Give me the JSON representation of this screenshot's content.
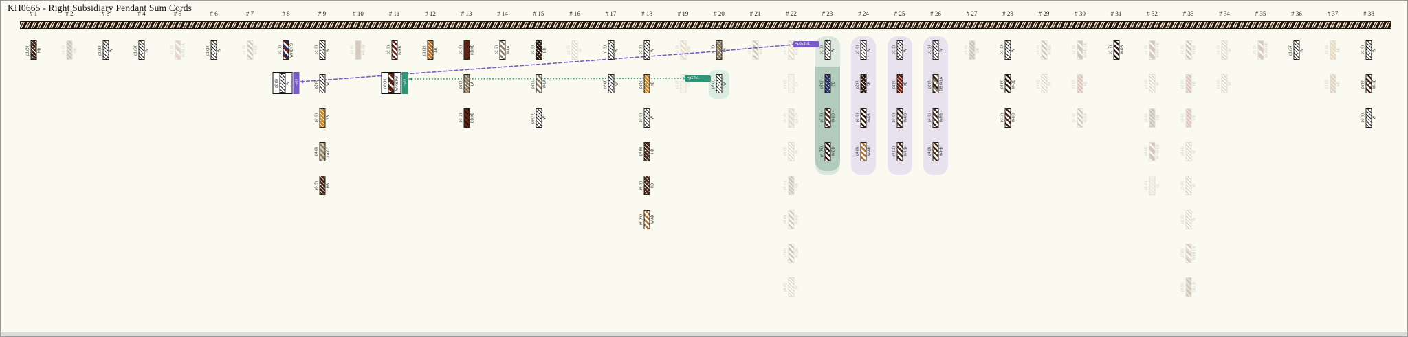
{
  "title": "KH0665 - Right Subsidiary Pendant Sum Cords",
  "colors": {
    "background": "#fbfaf0",
    "purple": "#7a5bc7",
    "teal": "#2f9579",
    "green_band_outer": "#dce8de",
    "green_band_inner": "#b2cbbc",
    "lavender_band": "#e7e2ee",
    "capsule_green": "#daece0"
  },
  "links": [
    {
      "name": "purple-sum-link",
      "color_key": "purple",
      "style": "dashed",
      "source": {
        "col": 8,
        "pendant": "p2",
        "badge": "→p18"
      },
      "via": {
        "col": 20,
        "pendant": "p1"
      },
      "dest": {
        "col": 23,
        "pendant": "p1",
        "badge": "=p9s1p1"
      }
    },
    {
      "name": "teal-sum-link",
      "color_key": "teal",
      "style": "dotted",
      "source": {
        "col": 11,
        "pendant": "p2",
        "badge": "→p18"
      },
      "dest": {
        "col": 20,
        "pendant": "p2",
        "badge": "=p17s1"
      }
    }
  ],
  "columns": [
    {
      "n": 1,
      "label": "# 1",
      "band": null,
      "pendants": [
        {
          "id": "p1",
          "value": 28,
          "code": "HB"
        }
      ]
    },
    {
      "n": 2,
      "label": "# 2",
      "band": null,
      "pendants": [
        {
          "id": "p1",
          "value": 0,
          "code": "DB",
          "faded": true
        }
      ]
    },
    {
      "n": 3,
      "label": "# 3",
      "band": null,
      "pendants": [
        {
          "id": "p1",
          "value": 18,
          "code": "W"
        }
      ]
    },
    {
      "n": 4,
      "label": "# 4",
      "band": null,
      "pendants": [
        {
          "id": "p1",
          "value": 58,
          "code": "W"
        }
      ]
    },
    {
      "n": 5,
      "label": "# 5",
      "band": null,
      "pendants": [
        {
          "id": "p1",
          "value": 0,
          "code": "W-RL:LA",
          "faded": true
        }
      ]
    },
    {
      "n": 6,
      "label": "# 6",
      "band": null,
      "pendants": [
        {
          "id": "p1",
          "value": 18,
          "code": "W"
        }
      ]
    },
    {
      "n": 7,
      "label": "# 7",
      "band": null,
      "pendants": [
        {
          "id": "p1",
          "value": 0,
          "code": "W-DB",
          "faded": true
        }
      ]
    },
    {
      "n": 8,
      "label": "# 8",
      "band": null,
      "pendants": [
        {
          "id": "p1",
          "value": 1,
          "code": "W:KB:PB"
        },
        {
          "id": "p2",
          "value": 1,
          "code": "W",
          "boxed": true,
          "badge": "→p18",
          "badge_color": "purple"
        }
      ]
    },
    {
      "n": 9,
      "label": "# 9",
      "band": null,
      "pendants": [
        {
          "id": "p1",
          "value": 0,
          "code": "W"
        },
        {
          "id": "p2",
          "value": 0,
          "code": "W"
        },
        {
          "id": "p3",
          "value": 0,
          "code": "YB"
        },
        {
          "id": "p4",
          "value": 0,
          "code": "LA-CY"
        },
        {
          "id": "p5",
          "value": 9,
          "code": "HB"
        }
      ]
    },
    {
      "n": 10,
      "label": "# 10",
      "band": null,
      "pendants": [
        {
          "id": "p1",
          "value": 0,
          "code": "HB-KB",
          "faded": true
        }
      ]
    },
    {
      "n": 11,
      "label": "# 11",
      "band": null,
      "pendants": [
        {
          "id": "p1",
          "value": 0,
          "code": "W-KB"
        },
        {
          "id": "p2",
          "value": 16,
          "code": "W:KB:HB",
          "boxed": true,
          "badge": "→p18",
          "badge_color": "teal"
        }
      ]
    },
    {
      "n": 12,
      "label": "# 12",
      "band": null,
      "pendants": [
        {
          "id": "p1",
          "value": 16,
          "code": "AB"
        }
      ]
    },
    {
      "n": 13,
      "label": "# 13",
      "band": null,
      "pendants": [
        {
          "id": "p1",
          "value": 0,
          "code": "HB:KB"
        },
        {
          "id": "p2",
          "value": 2,
          "code": "LA"
        },
        {
          "id": "p3",
          "value": 2,
          "code": "DB:KB"
        }
      ]
    },
    {
      "n": 14,
      "label": "# 14",
      "band": null,
      "pendants": [
        {
          "id": "p1",
          "value": 2,
          "code": "W-LA"
        }
      ]
    },
    {
      "n": 15,
      "label": "# 15",
      "band": null,
      "pendants": [
        {
          "id": "p1",
          "value": 0,
          "code": "DB"
        },
        {
          "id": "p2",
          "value": 1,
          "code": "W-LA"
        },
        {
          "id": "p3",
          "value": 74,
          "code": "W"
        }
      ]
    },
    {
      "n": 16,
      "label": "# 16",
      "band": null,
      "pendants": [
        {
          "id": "p1",
          "value": 0,
          "code": "W",
          "faded": true
        }
      ]
    },
    {
      "n": 17,
      "label": "# 17",
      "band": null,
      "pendants": [
        {
          "id": "p1",
          "value": 9,
          "code": "W"
        },
        {
          "id": "p2",
          "value": 8,
          "code": "W"
        }
      ]
    },
    {
      "n": 18,
      "label": "# 18",
      "band": null,
      "pendants": [
        {
          "id": "p1",
          "value": 9,
          "code": "W"
        },
        {
          "id": "p2",
          "value": 6,
          "code": "YB"
        },
        {
          "id": "p3",
          "value": 0,
          "code": "W"
        },
        {
          "id": "p4",
          "value": 6,
          "code": "HB"
        },
        {
          "id": "p5",
          "value": 9,
          "code": "HB"
        },
        {
          "id": "p6",
          "value": 69,
          "code": "W-AB"
        }
      ]
    },
    {
      "n": 19,
      "label": "# 19",
      "band": null,
      "pendants": [
        {
          "id": "p1",
          "value": 0,
          "code": "W-AB",
          "faded": true
        },
        {
          "id": "p2",
          "value": 0,
          "code": "CY",
          "faded": true
        }
      ]
    },
    {
      "n": 20,
      "label": "# 20",
      "band": null,
      "pendants": [
        {
          "id": "p1",
          "value": 6,
          "code": "LA"
        },
        {
          "id": "p2",
          "value": 1,
          "code": "W",
          "capsule": "capsule_green"
        }
      ]
    },
    {
      "n": 21,
      "label": "# 21",
      "band": null,
      "pendants": [
        {
          "id": "p1",
          "value": 0,
          "code": "W-DB",
          "faded": true
        }
      ]
    },
    {
      "n": 22,
      "label": "# 22",
      "band": null,
      "pendants": [
        {
          "id": "p1",
          "value": 0,
          "code": "W-AB",
          "faded": true
        },
        {
          "id": "p2",
          "value": 0,
          "code": "CY",
          "faded": true
        },
        {
          "id": "p3",
          "value": 0,
          "code": "LA-CY",
          "faded": true
        },
        {
          "id": "p4",
          "value": 0,
          "code": "W",
          "faded": true
        },
        {
          "id": "p5",
          "value": 0,
          "code": "HB",
          "faded": true
        },
        {
          "id": "p6",
          "value": 0,
          "code": "W-HB",
          "faded": true
        },
        {
          "id": "p7",
          "value": 0,
          "code": "W-DB",
          "faded": true
        },
        {
          "id": "p8",
          "value": 0,
          "code": "W",
          "faded": true
        }
      ]
    },
    {
      "n": 23,
      "label": "# 23",
      "band": "green",
      "pendants": [
        {
          "id": "p1",
          "value": 1,
          "code": "W"
        },
        {
          "id": "p2",
          "value": 6,
          "code": "PB"
        },
        {
          "id": "p3",
          "value": 6,
          "code": "W-HB"
        },
        {
          "id": "p4",
          "value": 58,
          "code": "W-DB"
        }
      ]
    },
    {
      "n": 24,
      "label": "# 24",
      "band": "lavender",
      "pendants": [
        {
          "id": "p1",
          "value": 0,
          "code": "W"
        },
        {
          "id": "p2",
          "value": 4,
          "code": "DB"
        },
        {
          "id": "p3",
          "value": 0,
          "code": "W-DB"
        },
        {
          "id": "p4",
          "value": 0,
          "code": "W-AB"
        }
      ]
    },
    {
      "n": 25,
      "label": "# 25",
      "band": "lavender",
      "pendants": [
        {
          "id": "p1",
          "value": 1,
          "code": "W"
        },
        {
          "id": "p2",
          "value": 0,
          "code": "KB"
        },
        {
          "id": "p3",
          "value": 0,
          "code": "W-HB"
        },
        {
          "id": "p4",
          "value": 11,
          "code": "W-HB"
        }
      ]
    },
    {
      "n": 26,
      "label": "# 26",
      "band": "lavender",
      "pendants": [
        {
          "id": "p1",
          "value": 0,
          "code": "W"
        },
        {
          "id": "p2",
          "value": 0,
          "code": "DB:W:LA"
        },
        {
          "id": "p3",
          "value": 0,
          "code": "W-HB"
        },
        {
          "id": "p4",
          "value": 3,
          "code": "W-HB"
        }
      ]
    },
    {
      "n": 27,
      "label": "# 27",
      "band": null,
      "pendants": [
        {
          "id": "p1",
          "value": 0,
          "code": "DB",
          "faded": true
        }
      ]
    },
    {
      "n": 28,
      "label": "# 28",
      "band": null,
      "pendants": [
        {
          "id": "p1",
          "value": 1,
          "code": "W"
        },
        {
          "id": "p2",
          "value": 0,
          "code": "W-DB"
        },
        {
          "id": "p3",
          "value": 7,
          "code": "W-HB"
        }
      ]
    },
    {
      "n": 29,
      "label": "# 29",
      "band": null,
      "pendants": [
        {
          "id": "p1",
          "value": 0,
          "code": "W-DB",
          "faded": true
        },
        {
          "id": "p2",
          "value": 0,
          "code": "W",
          "faded": true
        }
      ]
    },
    {
      "n": 30,
      "label": "# 30",
      "band": null,
      "pendants": [
        {
          "id": "p1",
          "value": 0,
          "code": "W-HB-DB",
          "faded": true
        },
        {
          "id": "p2",
          "value": 0,
          "code": "KB",
          "faded": true
        },
        {
          "id": "p3",
          "value": 0,
          "code": "W-DB",
          "faded": true
        }
      ]
    },
    {
      "n": 31,
      "label": "# 31",
      "band": null,
      "pendants": [
        {
          "id": "p1",
          "value": 7,
          "code": "W-DB"
        }
      ]
    },
    {
      "n": 32,
      "label": "# 32",
      "band": null,
      "pendants": [
        {
          "id": "p1",
          "value": 0,
          "code": "W-KB-DB",
          "faded": true
        },
        {
          "id": "p2",
          "value": 0,
          "code": "W",
          "faded": true
        },
        {
          "id": "p3",
          "value": 0,
          "code": "DB",
          "faded": true
        },
        {
          "id": "p4",
          "value": 0,
          "code": "W-KB-DB",
          "faded": true
        },
        {
          "id": "p5",
          "value": 0,
          "code": "GL",
          "faded": true
        }
      ]
    },
    {
      "n": 33,
      "label": "# 33",
      "band": null,
      "pendants": [
        {
          "id": "p1",
          "value": 0,
          "code": "W-DB",
          "faded": true
        },
        {
          "id": "p2",
          "value": 0,
          "code": "KB",
          "faded": true
        },
        {
          "id": "p3",
          "value": 0,
          "code": "KB",
          "faded": true
        },
        {
          "id": "p4",
          "value": 0,
          "code": "W",
          "faded": true
        },
        {
          "id": "p5",
          "value": 0,
          "code": "W",
          "faded": true
        },
        {
          "id": "p6",
          "value": 0,
          "code": "W",
          "faded": true
        },
        {
          "id": "p7",
          "value": 0,
          "code": "W:KB:LB",
          "faded": true
        },
        {
          "id": "p8",
          "value": 0,
          "code": "DB-LB",
          "faded": true
        }
      ]
    },
    {
      "n": 34,
      "label": "# 34",
      "band": null,
      "pendants": [
        {
          "id": "p1",
          "value": 0,
          "code": "W",
          "faded": true
        },
        {
          "id": "p2",
          "value": 0,
          "code": "W",
          "faded": true
        }
      ]
    },
    {
      "n": 35,
      "label": "# 35",
      "band": null,
      "pendants": [
        {
          "id": "p1",
          "value": 0,
          "code": "W-HB-KB",
          "faded": true
        }
      ]
    },
    {
      "n": 36,
      "label": "# 36",
      "band": null,
      "pendants": [
        {
          "id": "p1",
          "value": 54,
          "code": "W"
        }
      ]
    },
    {
      "n": 37,
      "label": "# 37",
      "band": null,
      "pendants": [
        {
          "id": "p1",
          "value": 0,
          "code": "AB",
          "faded": true
        },
        {
          "id": "p2",
          "value": 0,
          "code": "MB",
          "faded": true
        }
      ]
    },
    {
      "n": 38,
      "label": "# 38",
      "band": null,
      "pendants": [
        {
          "id": "p1",
          "value": 0,
          "code": "W"
        },
        {
          "id": "p2",
          "value": 0,
          "code": "W-HB"
        },
        {
          "id": "p3",
          "value": 9,
          "code": "W"
        }
      ]
    }
  ]
}
